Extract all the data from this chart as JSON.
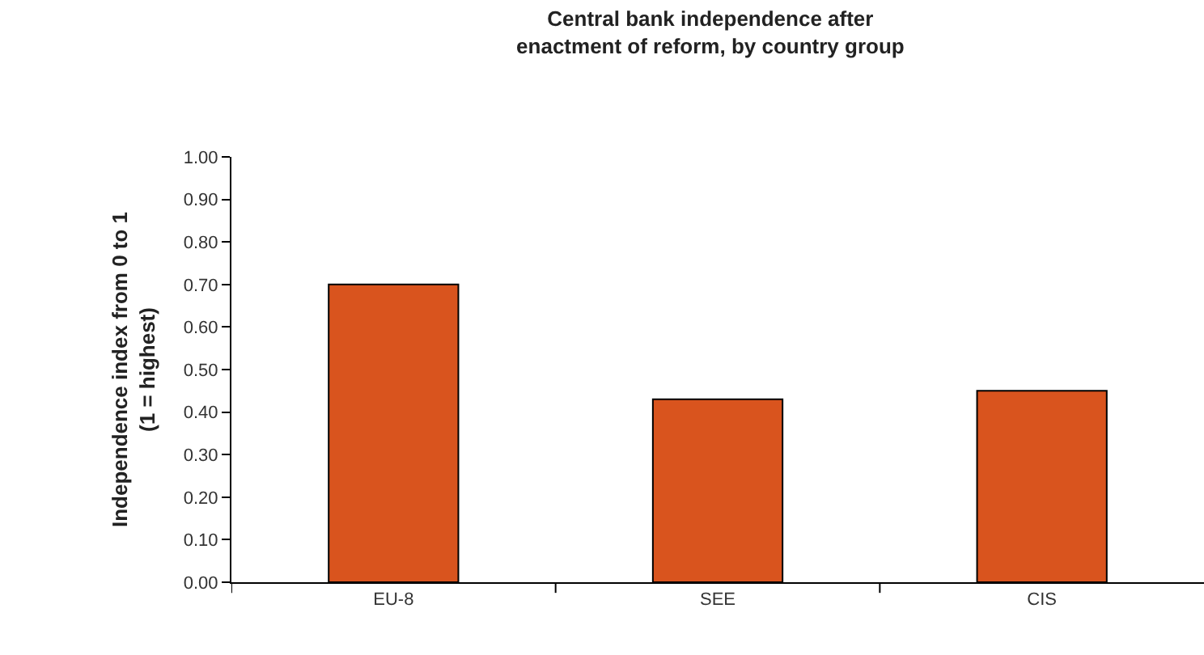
{
  "chart_data": {
    "type": "bar",
    "title": "Central bank independence after\nenactment of reform, by country group",
    "ylabel": "Independence index from 0 to 1\n(1 = highest)",
    "categories": [
      "EU-8",
      "SEE",
      "CIS"
    ],
    "values": [
      0.7,
      0.43,
      0.45
    ],
    "color": "#d9541e",
    "ylim": [
      0,
      1
    ],
    "yticks": [
      {
        "value": 0,
        "label": "0.00"
      },
      {
        "value": 0.1,
        "label": "0.10"
      },
      {
        "value": 0.2,
        "label": "0.20"
      },
      {
        "value": 0.3,
        "label": "0.30"
      },
      {
        "value": 0.4,
        "label": "0.40"
      },
      {
        "value": 0.5,
        "label": "0.50"
      },
      {
        "value": 0.6,
        "label": "0.60"
      },
      {
        "value": 0.7,
        "label": "0.70"
      },
      {
        "value": 0.8,
        "label": "0.80"
      },
      {
        "value": 0.9,
        "label": "0.90"
      },
      {
        "value": 1,
        "label": "1.00"
      }
    ],
    "grid": false
  }
}
